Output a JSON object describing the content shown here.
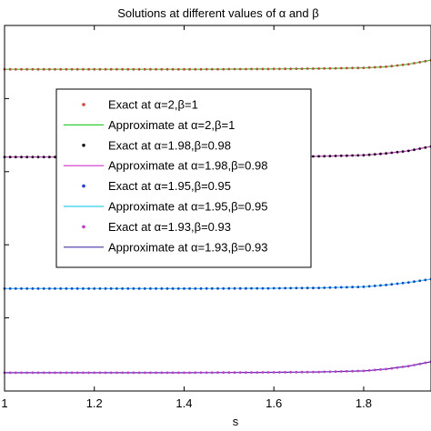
{
  "chart_data": {
    "type": "line",
    "title": "Solutions at different values of α and β",
    "xlabel": "s",
    "ylabel": "",
    "xlim": [
      1.0,
      1.95
    ],
    "ylim": [
      0.0,
      1.0
    ],
    "x_ticks": [
      1.0,
      1.2,
      1.4,
      1.6,
      1.8
    ],
    "x_tick_labels": [
      "1",
      "1.2",
      "1.4",
      "1.6",
      "1.8"
    ],
    "y_ticks": [
      0.0,
      0.2,
      0.4,
      0.6,
      0.8,
      1.0
    ],
    "grid": false,
    "legend_position": "upper-left",
    "series": [
      {
        "name": "Exact at α=2,β=1",
        "kind": "dots",
        "color": "#d9403c",
        "x": [
          1.0,
          1.2,
          1.4,
          1.6,
          1.7,
          1.8,
          1.85,
          1.9,
          1.95
        ],
        "y": [
          0.88,
          0.88,
          0.88,
          0.881,
          0.882,
          0.884,
          0.887,
          0.894,
          0.905
        ]
      },
      {
        "name": "Approximate at α=2,β=1",
        "kind": "line",
        "color": "#33cc33",
        "x": [
          1.0,
          1.2,
          1.4,
          1.6,
          1.7,
          1.8,
          1.85,
          1.9,
          1.95
        ],
        "y": [
          0.88,
          0.88,
          0.88,
          0.881,
          0.882,
          0.884,
          0.887,
          0.894,
          0.905
        ]
      },
      {
        "name": "Exact at α=1.98,β=0.98",
        "kind": "dots",
        "color": "#111111",
        "x": [
          1.0,
          1.2,
          1.4,
          1.6,
          1.7,
          1.8,
          1.85,
          1.9,
          1.95
        ],
        "y": [
          0.64,
          0.64,
          0.64,
          0.641,
          0.642,
          0.645,
          0.65,
          0.657,
          0.669
        ]
      },
      {
        "name": "Approximate at α=1.98,β=0.98",
        "kind": "line",
        "color": "#cc33cc",
        "x": [
          1.0,
          1.2,
          1.4,
          1.6,
          1.7,
          1.8,
          1.85,
          1.9,
          1.95
        ],
        "y": [
          0.64,
          0.64,
          0.64,
          0.641,
          0.642,
          0.645,
          0.65,
          0.657,
          0.669
        ]
      },
      {
        "name": "Exact at α=1.95,β=0.95",
        "kind": "dots",
        "color": "#1f3fd6",
        "x": [
          1.0,
          1.2,
          1.4,
          1.6,
          1.7,
          1.8,
          1.85,
          1.9,
          1.95
        ],
        "y": [
          0.28,
          0.28,
          0.28,
          0.281,
          0.282,
          0.285,
          0.29,
          0.297,
          0.306
        ]
      },
      {
        "name": "Approximate at α=1.95,β=0.95",
        "kind": "line",
        "color": "#33ccee",
        "x": [
          1.0,
          1.2,
          1.4,
          1.6,
          1.7,
          1.8,
          1.85,
          1.9,
          1.95
        ],
        "y": [
          0.28,
          0.28,
          0.28,
          0.281,
          0.282,
          0.285,
          0.29,
          0.297,
          0.306
        ]
      },
      {
        "name": "Exact at α=1.93,β=0.93",
        "kind": "dots",
        "color": "#cc33cc",
        "x": [
          1.0,
          1.2,
          1.4,
          1.6,
          1.7,
          1.8,
          1.85,
          1.9,
          1.95
        ],
        "y": [
          0.05,
          0.05,
          0.05,
          0.051,
          0.052,
          0.055,
          0.06,
          0.068,
          0.08
        ]
      },
      {
        "name": "Approximate at α=1.93,β=0.93",
        "kind": "line",
        "color": "#4433aa",
        "x": [
          1.0,
          1.2,
          1.4,
          1.6,
          1.7,
          1.8,
          1.85,
          1.9,
          1.95
        ],
        "y": [
          0.05,
          0.05,
          0.05,
          0.051,
          0.052,
          0.055,
          0.06,
          0.068,
          0.08
        ]
      }
    ]
  }
}
